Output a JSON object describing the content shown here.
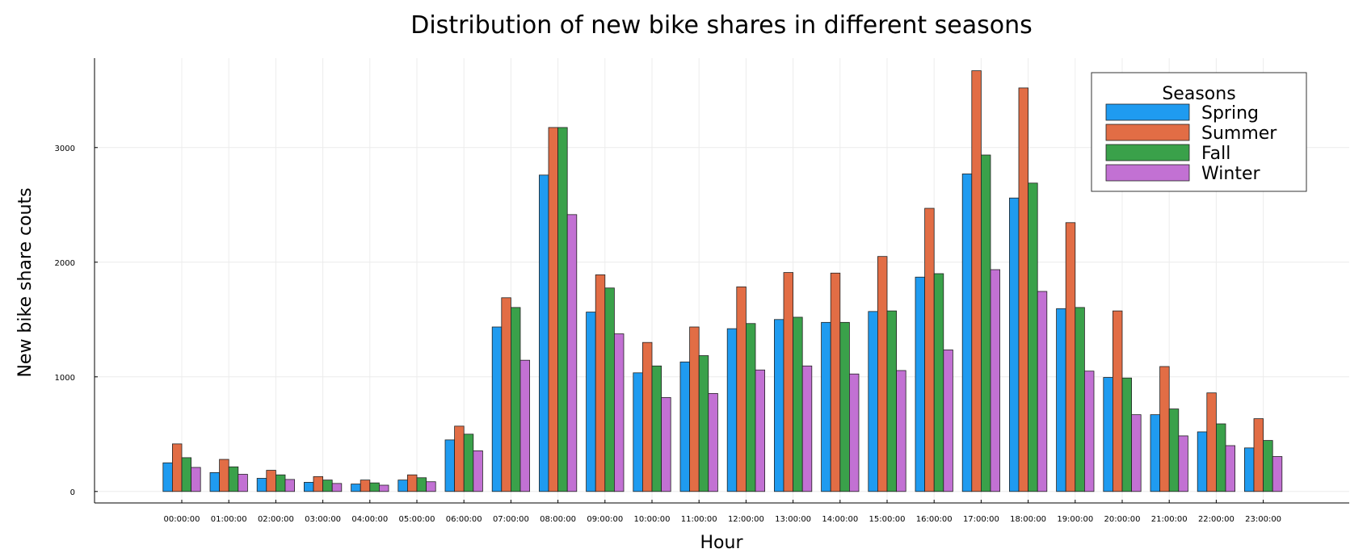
{
  "chart_data": {
    "type": "bar",
    "title": "Distribution of new bike shares in different seasons",
    "xlabel": "Hour",
    "ylabel": "New bike share couts",
    "legend_title": "Seasons",
    "legend_position": "top-right",
    "grid": true,
    "ylim": [
      -100,
      3780
    ],
    "yticks": [
      0,
      1000,
      2000,
      3000
    ],
    "categories": [
      "00:00:00",
      "01:00:00",
      "02:00:00",
      "03:00:00",
      "04:00:00",
      "05:00:00",
      "06:00:00",
      "07:00:00",
      "08:00:00",
      "09:00:00",
      "10:00:00",
      "11:00:00",
      "12:00:00",
      "13:00:00",
      "14:00:00",
      "15:00:00",
      "16:00:00",
      "17:00:00",
      "18:00:00",
      "19:00:00",
      "20:00:00",
      "21:00:00",
      "22:00:00",
      "23:00:00"
    ],
    "series": [
      {
        "name": "Spring",
        "color": "#1f9bf0",
        "values": [
          250,
          165,
          115,
          80,
          65,
          100,
          450,
          1435,
          2760,
          1565,
          1035,
          1130,
          1420,
          1500,
          1475,
          1570,
          1870,
          2770,
          2560,
          1595,
          995,
          670,
          520,
          380
        ]
      },
      {
        "name": "Summer",
        "color": "#e26d45",
        "values": [
          415,
          280,
          185,
          130,
          100,
          145,
          570,
          1690,
          3175,
          1890,
          1300,
          1435,
          1785,
          1910,
          1905,
          2050,
          2470,
          3670,
          3520,
          2345,
          1575,
          1090,
          860,
          635
        ]
      },
      {
        "name": "Fall",
        "color": "#3aa14a",
        "values": [
          295,
          215,
          145,
          100,
          75,
          120,
          500,
          1605,
          3175,
          1775,
          1095,
          1185,
          1465,
          1520,
          1475,
          1575,
          1900,
          2935,
          2690,
          1605,
          990,
          720,
          590,
          445
        ]
      },
      {
        "name": "Winter",
        "color": "#c271d3",
        "values": [
          210,
          150,
          105,
          70,
          55,
          85,
          355,
          1145,
          2415,
          1375,
          820,
          855,
          1060,
          1095,
          1025,
          1055,
          1235,
          1935,
          1745,
          1050,
          670,
          485,
          400,
          305
        ]
      }
    ]
  }
}
